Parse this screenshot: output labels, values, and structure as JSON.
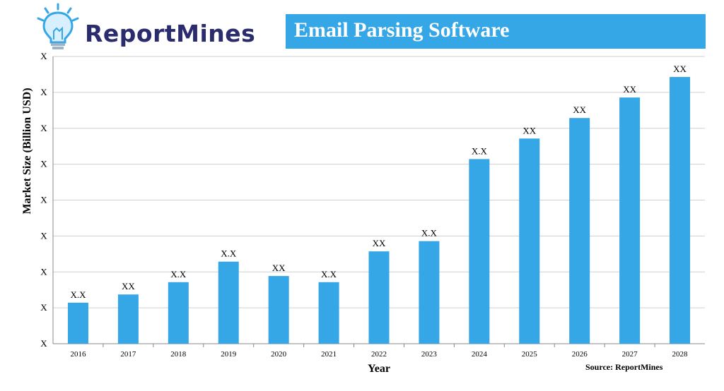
{
  "brand": {
    "name": "ReportMines"
  },
  "title": "Email Parsing Software",
  "source": "Source: ReportMines",
  "colors": {
    "bar": "#35a6e6",
    "grid": "#d0d0d0",
    "brand": "#2b2c6e"
  },
  "chart_data": {
    "type": "bar",
    "title": "Email Parsing Software",
    "xlabel": "Year",
    "ylabel": "Market Size (Billion USD)",
    "categories": [
      "2016",
      "2017",
      "2018",
      "2019",
      "2020",
      "2021",
      "2022",
      "2023",
      "2024",
      "2025",
      "2026",
      "2027",
      "2028"
    ],
    "values": [
      2.0,
      2.4,
      3.0,
      4.0,
      3.3,
      3.0,
      4.5,
      5.0,
      9.0,
      10.0,
      11.0,
      12.0,
      13.0
    ],
    "value_labels": [
      "X.X",
      "XX",
      "X.X",
      "X.X",
      "XX",
      "X.X",
      "XX",
      "X.X",
      "X.X",
      "XX",
      "XX",
      "XX",
      "XX"
    ],
    "y_tick_labels": [
      "X",
      "X",
      "X",
      "X",
      "X",
      "X",
      "X",
      "X",
      "X"
    ],
    "ylim": [
      0,
      14
    ],
    "grid": true,
    "legend": "none"
  }
}
